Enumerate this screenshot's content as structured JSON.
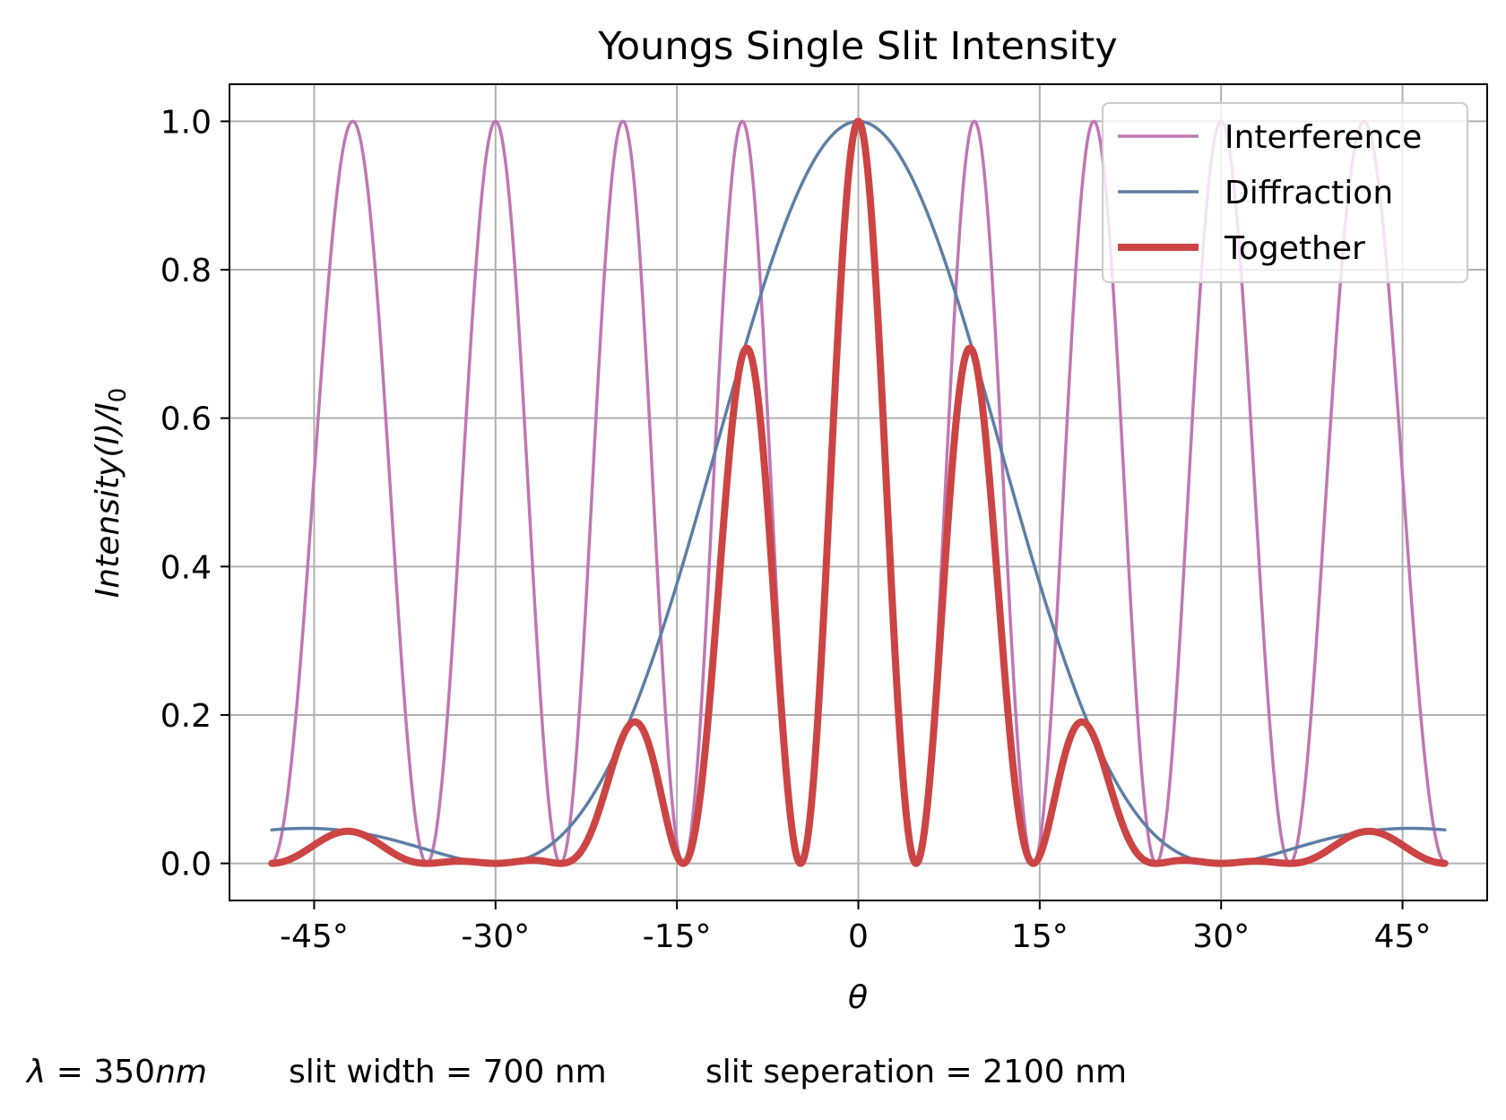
{
  "chart_data": {
    "type": "line",
    "title": "Youngs Single Slit Intensity",
    "xlabel": "θ",
    "ylabel": "Intensity(I)/I",
    "ylabel_subscript": "0",
    "xlim": [
      -52,
      52
    ],
    "ylim": [
      -0.05,
      1.05
    ],
    "x_ticks": [
      -45,
      -30,
      -15,
      0,
      15,
      30,
      45
    ],
    "x_tick_labels": [
      "-45°",
      "-30°",
      "-15°",
      "0",
      "15°",
      "30°",
      "45°"
    ],
    "y_ticks": [
      0,
      0.2,
      0.4,
      0.6,
      0.8,
      1.0
    ],
    "y_tick_labels": [
      "0.0",
      "0.2",
      "0.4",
      "0.6",
      "0.8",
      "1.0"
    ],
    "grid": true,
    "legend_position": "top-right",
    "wavelength_nm": 350,
    "slit_width_nm": 700,
    "slit_separation_nm": 2100,
    "theta_range_deg": [
      -48.5,
      48.5
    ],
    "series": [
      {
        "name": "Interference",
        "color": "#bf77b4",
        "line": "thin",
        "formula": "cos^2(pi*d*sin(theta)/lambda)"
      },
      {
        "name": "Diffraction",
        "color": "#5e7ea5",
        "line": "thin",
        "formula": "sinc^2(pi*a*sin(theta)/lambda)"
      },
      {
        "name": "Together",
        "color": "#cc4444",
        "line": "thick",
        "formula": "interference*diffraction"
      }
    ]
  },
  "caption": {
    "lambda_symbol": "λ",
    "lambda_eq": " = 350",
    "lambda_unit": "nm",
    "slit_width": "slit width = 700 nm",
    "slit_separation": "slit seperation = 2100 nm"
  }
}
